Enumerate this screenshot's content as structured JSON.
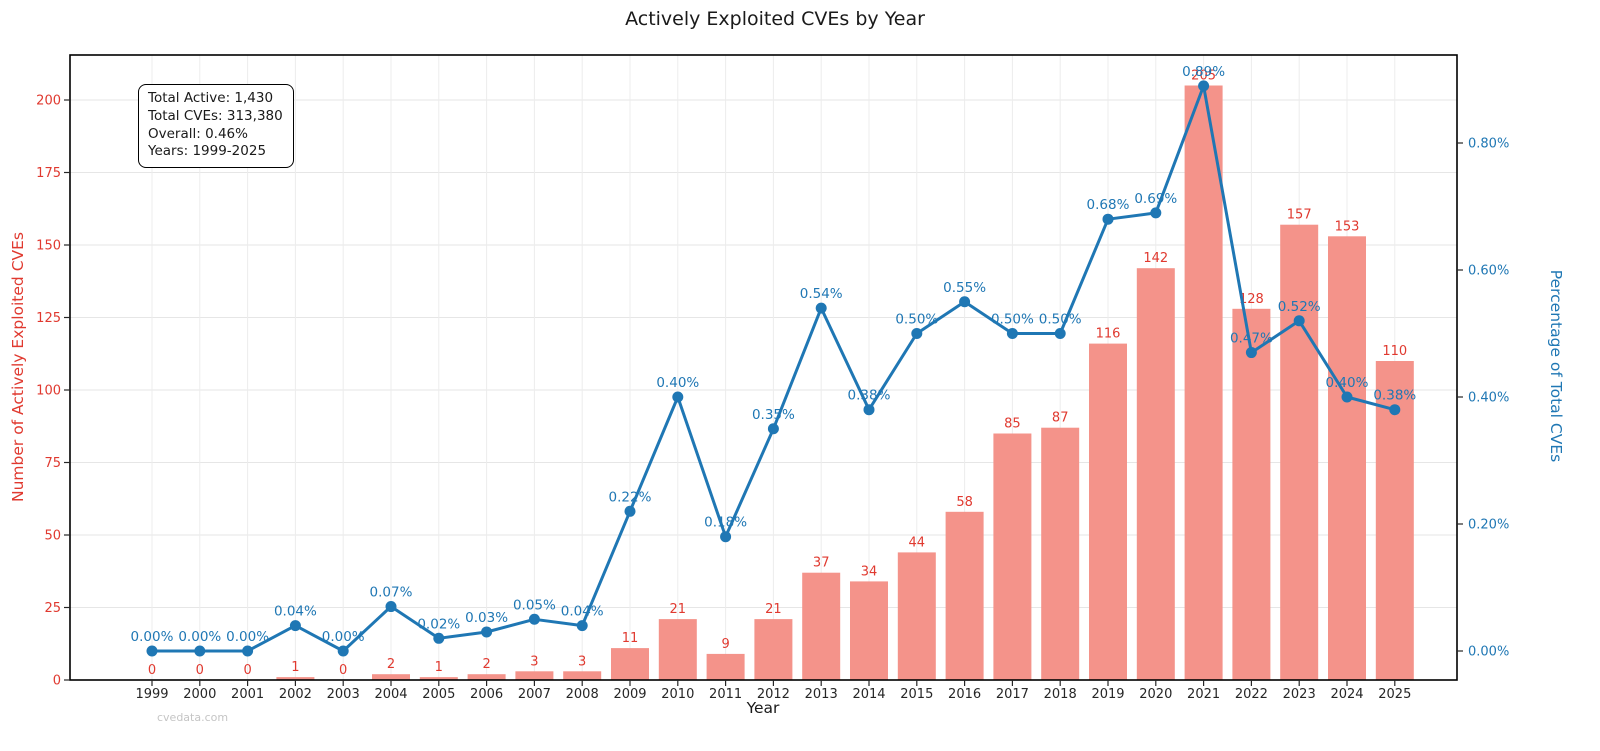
{
  "chart_data": {
    "type": "bar",
    "title": "Actively Exploited CVEs by Year",
    "xlabel": "Year",
    "ylabel_left": "Number of Actively Exploited CVEs",
    "ylabel_right": "Percentage of Total CVEs",
    "watermark": "cvedata.com",
    "grid": true,
    "legend_position": "none",
    "categories": [
      "1999",
      "2000",
      "2001",
      "2002",
      "2003",
      "2004",
      "2005",
      "2006",
      "2007",
      "2008",
      "2009",
      "2010",
      "2011",
      "2012",
      "2013",
      "2014",
      "2015",
      "2016",
      "2017",
      "2018",
      "2019",
      "2020",
      "2021",
      "2022",
      "2023",
      "2024",
      "2025"
    ],
    "series": [
      {
        "name": "Number of Actively Exploited CVEs",
        "type": "bar",
        "axis": "left",
        "color": "#f4938a",
        "label_color": "#e0392f",
        "values": [
          0,
          0,
          0,
          1,
          0,
          2,
          1,
          2,
          3,
          3,
          11,
          21,
          9,
          21,
          37,
          34,
          44,
          58,
          85,
          87,
          116,
          142,
          205,
          128,
          157,
          153,
          110
        ]
      },
      {
        "name": "Percentage of Total CVEs",
        "type": "line",
        "axis": "right",
        "color": "#1f77b4",
        "values_pct": [
          0.0,
          0.0,
          0.0,
          0.04,
          0.0,
          0.07,
          0.02,
          0.03,
          0.05,
          0.04,
          0.22,
          0.4,
          0.18,
          0.35,
          0.54,
          0.38,
          0.5,
          0.55,
          0.5,
          0.5,
          0.68,
          0.69,
          0.89,
          0.47,
          0.52,
          0.4,
          0.38
        ],
        "point_labels": [
          "0.00%",
          "0.00%",
          "0.00%",
          "0.04%",
          "0.00%",
          "0.07%",
          "0.02%",
          "0.03%",
          "0.05%",
          "0.04%",
          "0.22%",
          "0.40%",
          "0.18%",
          "0.35%",
          "0.54%",
          "0.38%",
          "0.50%",
          "0.55%",
          "0.50%",
          "0.50%",
          "0.68%",
          "0.69%",
          "0.89%",
          "0.47%",
          "0.52%",
          "0.40%",
          "0.38%"
        ]
      }
    ],
    "left_axis": {
      "color": "#e0392f",
      "ticks": [
        0,
        25,
        50,
        75,
        100,
        125,
        150,
        175,
        200
      ],
      "range": [
        0,
        215
      ]
    },
    "right_axis": {
      "color": "#1f77b4",
      "tick_labels": [
        "0.00%",
        "0.20%",
        "0.40%",
        "0.60%",
        "0.80%"
      ],
      "tick_values": [
        0,
        0.2,
        0.4,
        0.6,
        0.8
      ],
      "range_pct": [
        -0.046,
        0.938
      ]
    },
    "stats_box_lines": [
      "Total Active: 1,430",
      "Total CVEs: 313,380",
      "Overall: 0.46%",
      "Years: 1999-2025"
    ]
  }
}
